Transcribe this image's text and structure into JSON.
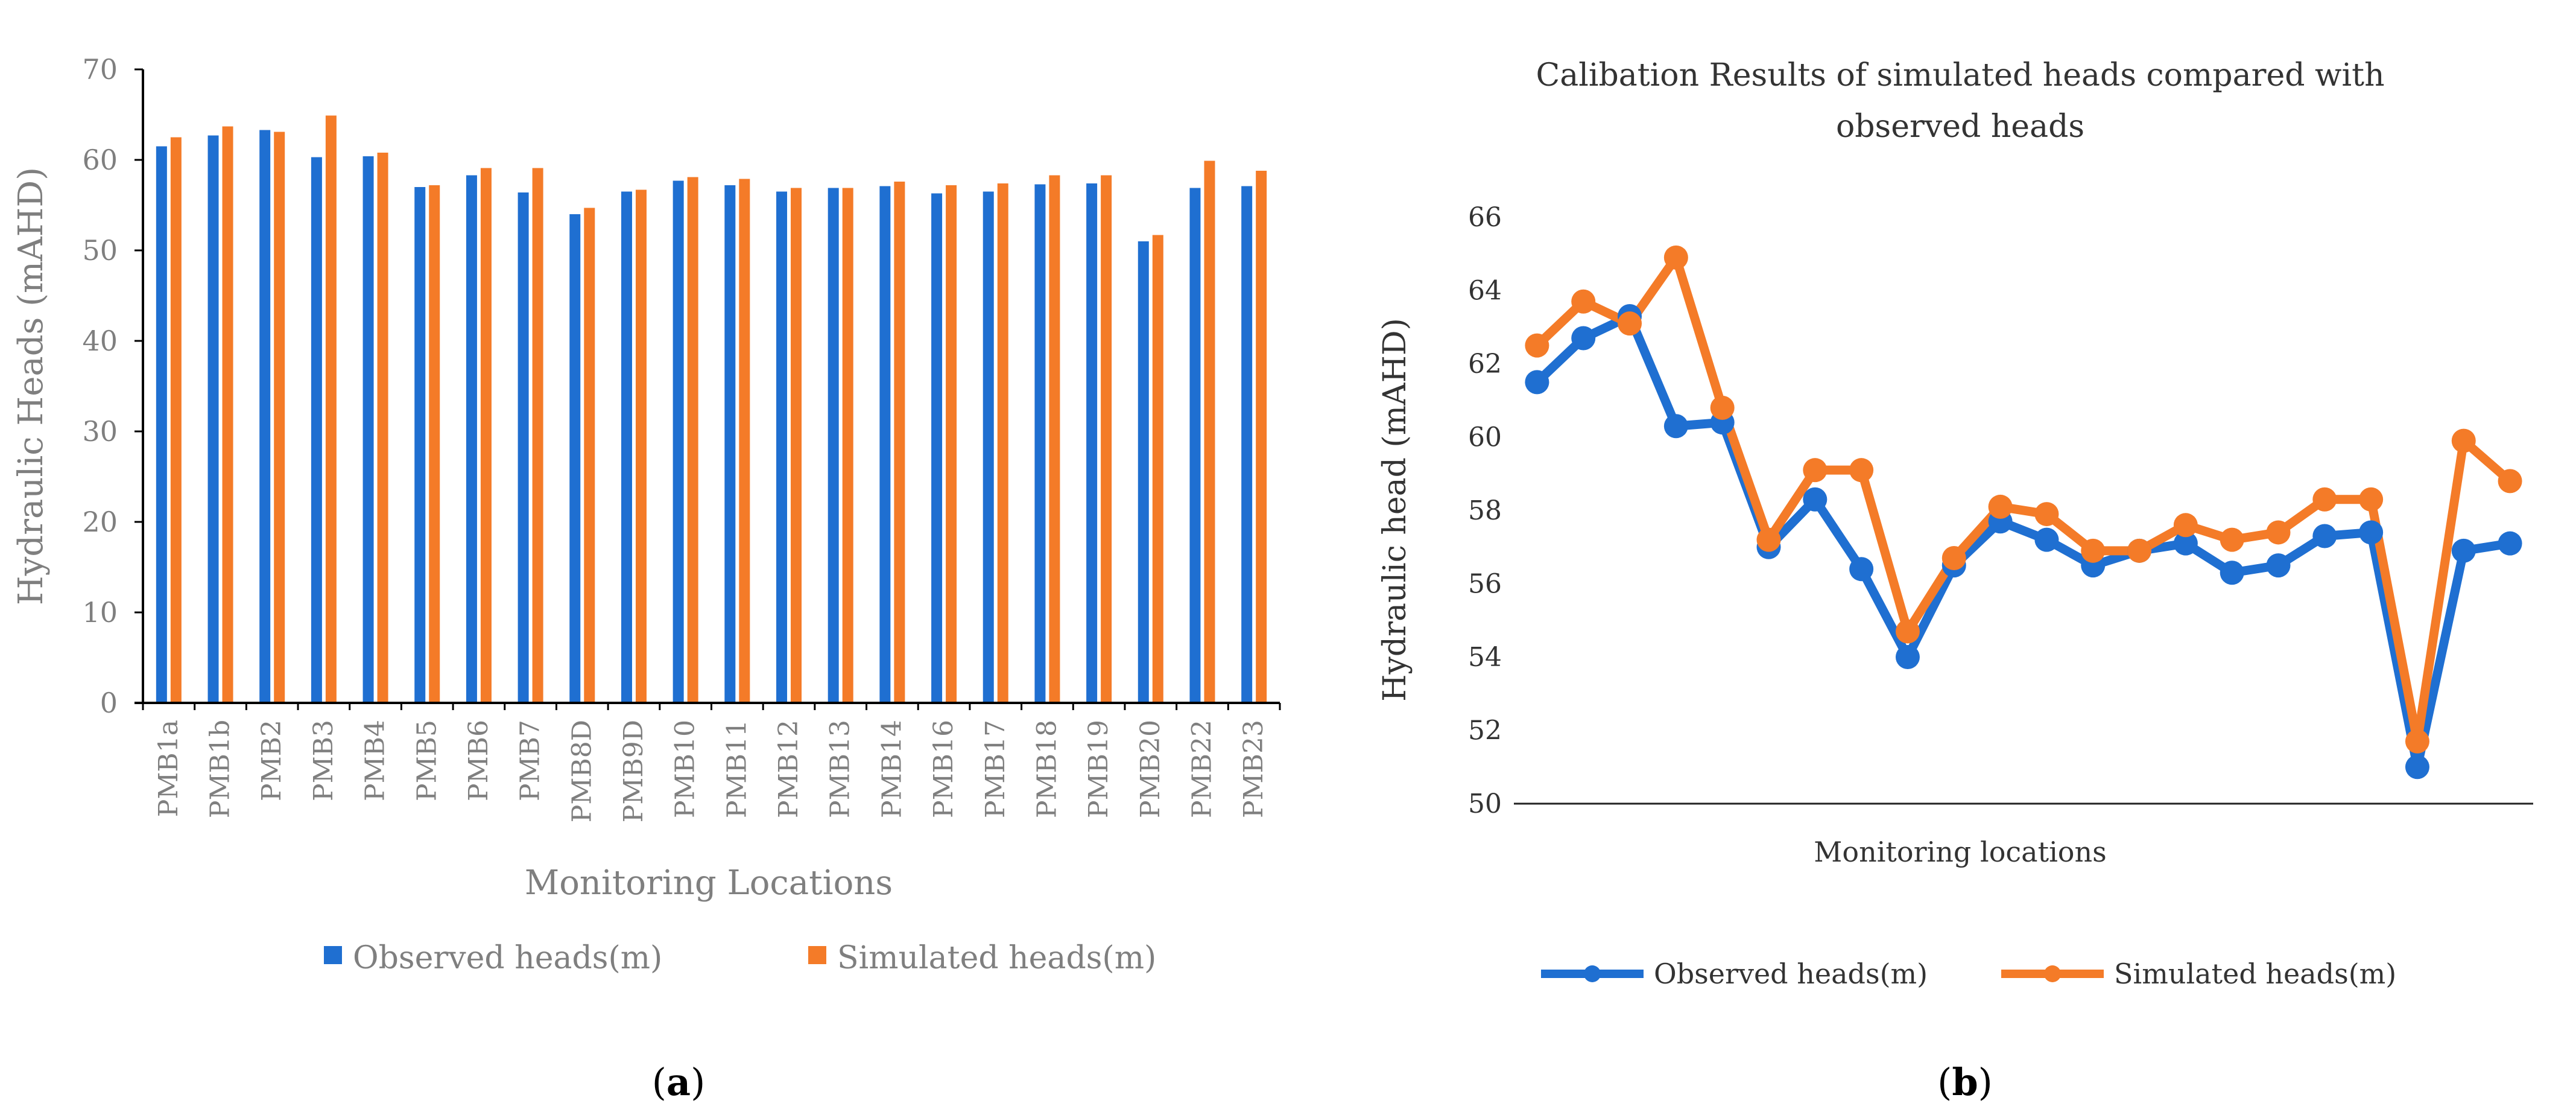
{
  "colors": {
    "observed": "#1F6FD1",
    "simulated": "#F47B28",
    "axis": "#000000",
    "text": "#7F7F7F",
    "dark_text": "#333333"
  },
  "chart_data": [
    {
      "type": "bar",
      "title": "",
      "xlabel": "Monitoring Locations",
      "ylabel": "Hydraulic Heads (mAHD)",
      "ylim": [
        0,
        70
      ],
      "yticks": [
        "0",
        "10",
        "20",
        "30",
        "40",
        "50",
        "60",
        "70"
      ],
      "categories": [
        "PMB1a",
        "PMB1b",
        "PMB2",
        "PMB3",
        "PMB4",
        "PMB5",
        "PMB6",
        "PMB7",
        "PMB8D",
        "PMB9D",
        "PMB10",
        "PMB11",
        "PMB12",
        "PMB13",
        "PMB14",
        "PMB16",
        "PMB17",
        "PMB18",
        "PMB19",
        "PMB20",
        "PMB22",
        "PMB23"
      ],
      "series": [
        {
          "name": "Observed heads(m)",
          "values": [
            61.5,
            62.7,
            63.3,
            60.3,
            60.4,
            57.0,
            58.3,
            56.4,
            54.0,
            56.5,
            57.7,
            57.2,
            56.5,
            56.9,
            57.1,
            56.3,
            56.5,
            57.3,
            57.4,
            51.0,
            56.9,
            57.1
          ]
        },
        {
          "name": "Simulated heads(m)",
          "values": [
            62.5,
            63.7,
            63.1,
            64.9,
            60.8,
            57.2,
            59.1,
            59.1,
            54.7,
            56.7,
            58.1,
            57.9,
            56.9,
            56.9,
            57.6,
            57.2,
            57.4,
            58.3,
            58.3,
            51.7,
            59.9,
            58.8
          ]
        }
      ],
      "legend": "bottom",
      "caption_open": "(",
      "caption_letter": "a",
      "caption_close": ")"
    },
    {
      "type": "line",
      "title_line1": "Calibation Results of simulated heads compared with",
      "title_line2": "observed heads",
      "xlabel": "Monitoring locations",
      "ylabel": "Hydraulic head (mAHD)",
      "ylim": [
        50,
        66
      ],
      "yticks": [
        "50",
        "52",
        "54",
        "56",
        "58",
        "60",
        "62",
        "64",
        "66"
      ],
      "series": [
        {
          "name": "Observed heads(m)",
          "values": [
            61.5,
            62.7,
            63.3,
            60.3,
            60.4,
            57.0,
            58.3,
            56.4,
            54.0,
            56.5,
            57.7,
            57.2,
            56.5,
            56.9,
            57.1,
            56.3,
            56.5,
            57.3,
            57.4,
            51.0,
            56.9,
            57.1
          ]
        },
        {
          "name": "Simulated heads(m)",
          "values": [
            62.5,
            63.7,
            63.1,
            64.9,
            60.8,
            57.2,
            59.1,
            59.1,
            54.7,
            56.7,
            58.1,
            57.9,
            56.9,
            56.9,
            57.6,
            57.2,
            57.4,
            58.3,
            58.3,
            51.7,
            59.9,
            58.8
          ]
        }
      ],
      "legend": "bottom",
      "caption_open": "(",
      "caption_letter": "b",
      "caption_close": ")"
    }
  ]
}
